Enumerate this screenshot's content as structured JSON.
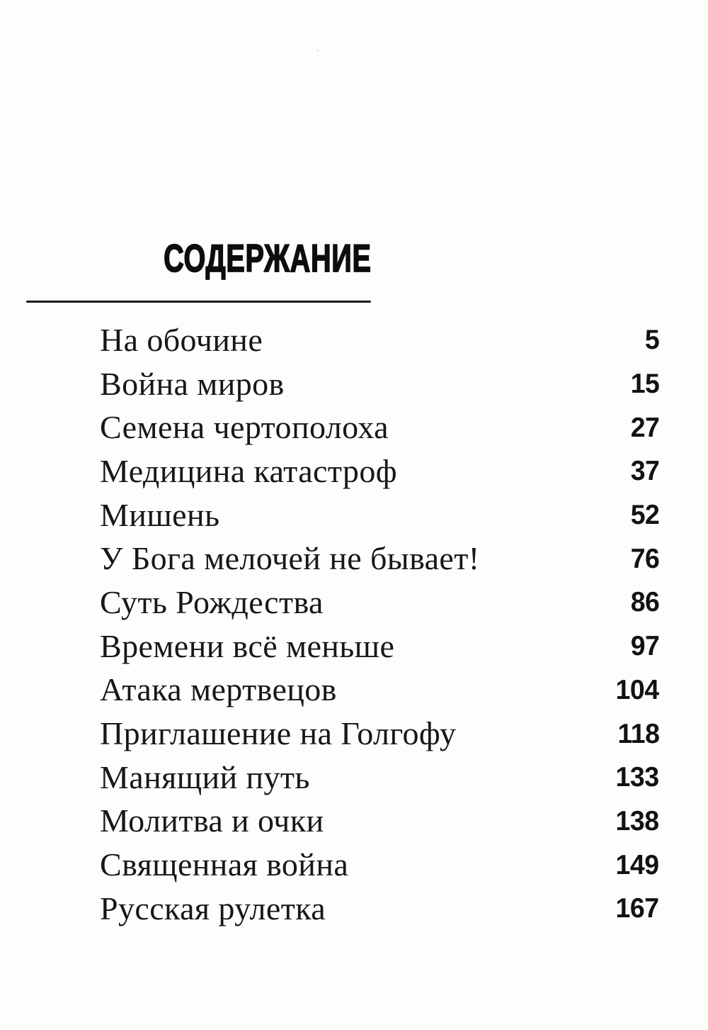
{
  "page": {
    "heading": "СОДЕРЖАНИЕ",
    "colors": {
      "paper": "#fdfdfc",
      "ink": "#171715"
    }
  },
  "toc": {
    "entries": [
      {
        "title": "На обочине",
        "page": "5"
      },
      {
        "title": "Война миров",
        "page": "15"
      },
      {
        "title": "Семена чертополоха",
        "page": "27"
      },
      {
        "title": "Медицина катастроф",
        "page": "37"
      },
      {
        "title": "Мишень",
        "page": "52"
      },
      {
        "title": "У Бога мелочей не бывает!",
        "page": "76"
      },
      {
        "title": "Суть Рождества",
        "page": "86"
      },
      {
        "title": "Времени всё меньше",
        "page": "97"
      },
      {
        "title": "Атака мертвецов",
        "page": "104"
      },
      {
        "title": "Приглашение на Голгофу",
        "page": "118"
      },
      {
        "title": "Манящий путь",
        "page": "133"
      },
      {
        "title": "Молитва и очки",
        "page": "138"
      },
      {
        "title": "Священная война",
        "page": "149"
      },
      {
        "title": "Русская рулетка",
        "page": "167"
      }
    ]
  }
}
